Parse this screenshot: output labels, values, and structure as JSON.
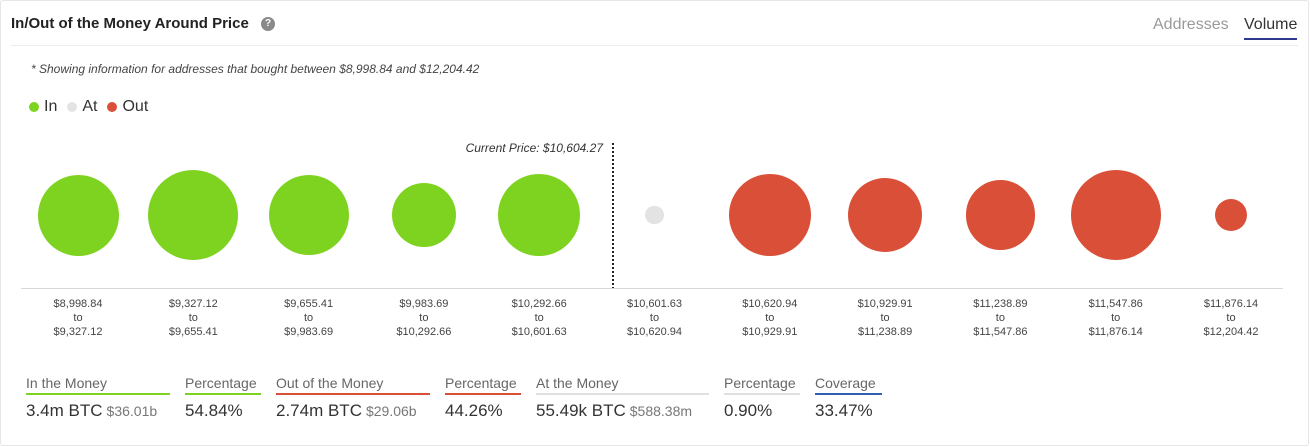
{
  "header": {
    "title": "In/Out of the Money Around Price",
    "help_icon": "?",
    "tabs": [
      {
        "label": "Addresses",
        "active": false
      },
      {
        "label": "Volume",
        "active": true
      }
    ]
  },
  "note": "* Showing information for addresses that bought between $8,998.84 and $12,204.42",
  "legend": [
    {
      "label": "In",
      "color": "#7ed321"
    },
    {
      "label": "At",
      "color": "#e3e3e3"
    },
    {
      "label": "Out",
      "color": "#d94f38"
    }
  ],
  "current_price_label": "Current Price: $10,604.27",
  "chart_data": {
    "type": "bubble",
    "current_price": 10604.27,
    "bins": [
      {
        "from": "$8,998.84",
        "to": "$9,327.12",
        "to_word": "to",
        "status": "in",
        "relative_size": 0.9
      },
      {
        "from": "$9,327.12",
        "to": "$9,655.41",
        "to_word": "to",
        "status": "in",
        "relative_size": 1.0
      },
      {
        "from": "$9,655.41",
        "to": "$9,983.69",
        "to_word": "to",
        "status": "in",
        "relative_size": 0.89
      },
      {
        "from": "$9,983.69",
        "to": "$10,292.66",
        "to_word": "to",
        "status": "in",
        "relative_size": 0.72
      },
      {
        "from": "$10,292.66",
        "to": "$10,601.63",
        "to_word": "to",
        "status": "in",
        "relative_size": 0.91
      },
      {
        "from": "$10,601.63",
        "to": "$10,620.94",
        "to_word": "to",
        "status": "at",
        "relative_size": 0.21
      },
      {
        "from": "$10,620.94",
        "to": "$10,929.91",
        "to_word": "to",
        "status": "out",
        "relative_size": 0.91
      },
      {
        "from": "$10,929.91",
        "to": "$11,238.89",
        "to_word": "to",
        "status": "out",
        "relative_size": 0.83
      },
      {
        "from": "$11,238.89",
        "to": "$11,547.86",
        "to_word": "to",
        "status": "out",
        "relative_size": 0.77
      },
      {
        "from": "$11,547.86",
        "to": "$11,876.14",
        "to_word": "to",
        "status": "out",
        "relative_size": 1.0
      },
      {
        "from": "$11,876.14",
        "to": "$12,204.42",
        "to_word": "to",
        "status": "out",
        "relative_size": 0.36
      }
    ]
  },
  "stats": {
    "in_money": {
      "title": "In the Money",
      "value": "3.4m BTC",
      "sub": "$36.01b",
      "color": "#7ed321"
    },
    "in_pct": {
      "title": "Percentage",
      "value": "54.84%",
      "color": "#7ed321"
    },
    "out_money": {
      "title": "Out of the Money",
      "value": "2.74m BTC",
      "sub": "$29.06b",
      "color": "#d94f38"
    },
    "out_pct": {
      "title": "Percentage",
      "value": "44.26%",
      "color": "#d94f38"
    },
    "at_money": {
      "title": "At the Money",
      "value": "55.49k BTC",
      "sub": "$588.38m",
      "color": "#e0e0e0"
    },
    "at_pct": {
      "title": "Percentage",
      "value": "0.90%",
      "color": "#e0e0e0"
    },
    "coverage": {
      "title": "Coverage",
      "value": "33.47%",
      "color": "#2f5fb3"
    }
  }
}
